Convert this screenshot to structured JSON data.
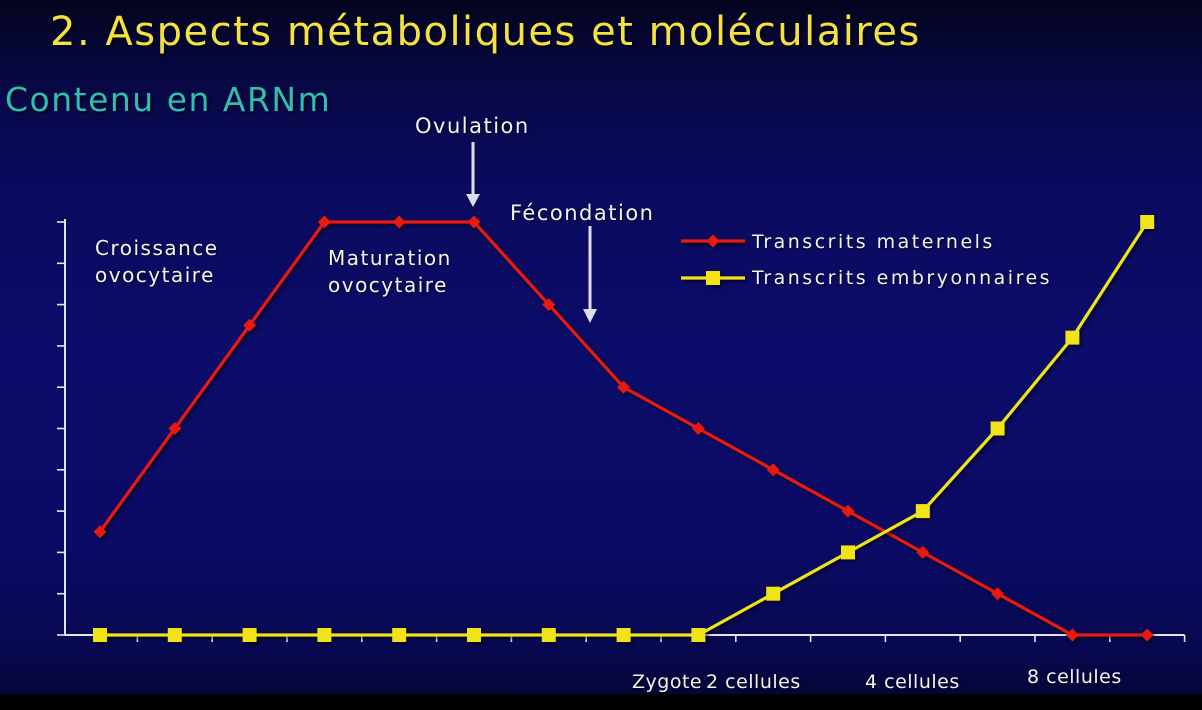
{
  "slide": {
    "title": "2. Aspects métaboliques et moléculaires",
    "title_color": "#f3e23f",
    "heading_color": "#2fbfae",
    "text_color": "#f4f4f4"
  },
  "chart_data": {
    "type": "line",
    "title": "Contenu en ARNm",
    "ylim": [
      0,
      10
    ],
    "ytick_step": 1,
    "grid": false,
    "legend": "top-right",
    "series": [
      {
        "name": "Transcrits maternels",
        "color": "#e81a10",
        "marker": "diamond",
        "values": [
          2.5,
          5,
          7.5,
          10,
          10,
          10,
          8,
          6,
          5,
          4,
          3,
          2,
          1,
          0,
          0
        ]
      },
      {
        "name": "Transcrits embryonnaires",
        "color": "#f0e416",
        "marker": "square",
        "values": [
          0,
          0,
          0,
          0,
          0,
          0,
          0,
          0,
          0,
          1,
          2,
          3,
          5,
          7.2,
          10
        ]
      }
    ],
    "annotations": [
      {
        "lines": [
          "Croissance",
          "ovocytaire"
        ]
      },
      {
        "lines": [
          "Maturation",
          "ovocytaire"
        ]
      },
      {
        "lines": [
          "Ovulation"
        ]
      },
      {
        "lines": [
          "Fécondation"
        ]
      }
    ],
    "stage_labels": [
      "Zygote",
      "2 cellules",
      "4 cellules",
      "8 cellules"
    ]
  }
}
